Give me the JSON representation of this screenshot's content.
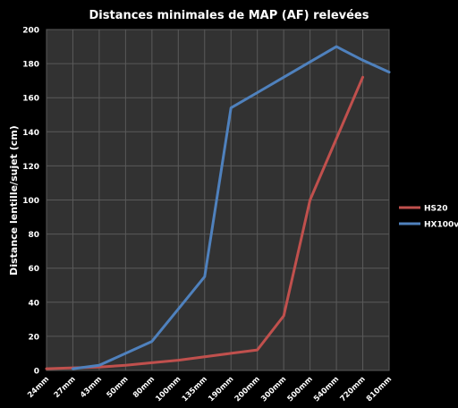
{
  "chart_data": {
    "type": "line",
    "title": "Distances minimales de MAP (AF) relevées",
    "xlabel": "",
    "ylabel": "Distance lentille/sujet (cm)",
    "categories": [
      "24mm",
      "27mm",
      "43mm",
      "50mm",
      "80mm",
      "100mm",
      "135mm",
      "190mm",
      "200mm",
      "300mm",
      "500mm",
      "540mm",
      "720mm",
      "810mm"
    ],
    "ylim": [
      0,
      200
    ],
    "yticks": [
      0,
      20,
      40,
      60,
      80,
      100,
      120,
      140,
      160,
      180,
      200
    ],
    "grid": true,
    "legend_position": "right",
    "series": [
      {
        "name": "HS20",
        "color": "#C0504D",
        "points": [
          {
            "x": "24mm",
            "y": 1
          },
          {
            "x": "27mm",
            "y": 1.5
          },
          {
            "x": "43mm",
            "y": 2
          },
          {
            "x": "50mm",
            "y": 3
          },
          {
            "x": "80mm",
            "y": 4.5
          },
          {
            "x": "100mm",
            "y": 6
          },
          {
            "x": "135mm",
            "y": 8
          },
          {
            "x": "190mm",
            "y": 10
          },
          {
            "x": "200mm",
            "y": 12
          },
          {
            "x": "300mm",
            "y": 32
          },
          {
            "x": "500mm",
            "y": 100
          },
          {
            "x": "540mm",
            "y": 136
          },
          {
            "x": "720mm",
            "y": 172
          }
        ]
      },
      {
        "name": "HX100v",
        "color": "#4F81BD",
        "points": [
          {
            "x": "27mm",
            "y": 1
          },
          {
            "x": "43mm",
            "y": 3
          },
          {
            "x": "80mm",
            "y": 17
          },
          {
            "x": "100mm",
            "y": 36
          },
          {
            "x": "135mm",
            "y": 55
          },
          {
            "x": "190mm",
            "y": 154
          },
          {
            "x": "200mm",
            "y": 163
          },
          {
            "x": "300mm",
            "y": 172
          },
          {
            "x": "500mm",
            "y": 181
          },
          {
            "x": "540mm",
            "y": 190
          },
          {
            "x": "720mm",
            "y": 182
          },
          {
            "x": "810mm",
            "y": 175
          }
        ]
      }
    ]
  },
  "colors": {
    "background": "#000000",
    "plot_area": "#323232",
    "grid": "#5a5a5a",
    "text": "#ffffff"
  }
}
